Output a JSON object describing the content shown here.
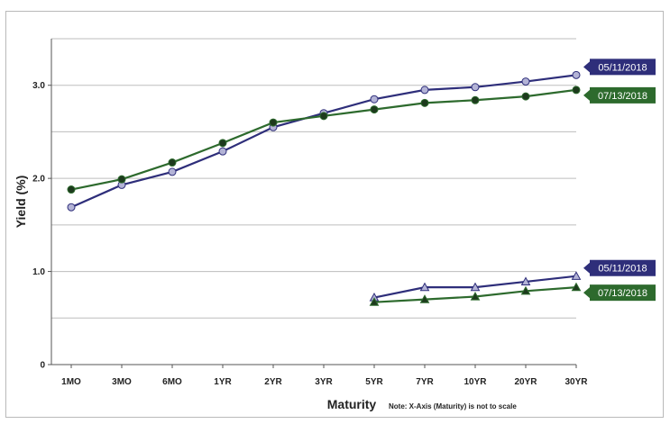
{
  "chart_data": {
    "type": "line",
    "xlabel": "Maturity",
    "note": "Note: X-Axis (Maturity) is not to scale",
    "ylabel": "Yield (%)",
    "ylim": [
      0,
      3.5
    ],
    "yticks": [
      {
        "value": 0,
        "label": "0"
      },
      {
        "value": 1,
        "label": "1.0"
      },
      {
        "value": 2,
        "label": "2.0"
      },
      {
        "value": 3,
        "label": "3.0"
      }
    ],
    "categories": [
      "1MO",
      "3MO",
      "6MO",
      "1YR",
      "2YR",
      "3YR",
      "5YR",
      "7YR",
      "10YR",
      "20YR",
      "30YR"
    ],
    "grid": true,
    "series": [
      {
        "name": "05/11/2018",
        "marker": "circle",
        "line_color": "#2e2e7a",
        "marker_fill": "#b3b3d6",
        "label_bg": "#2e2e7a",
        "values": [
          1.69,
          1.93,
          2.07,
          2.29,
          2.55,
          2.7,
          2.85,
          2.95,
          2.98,
          3.04,
          3.11
        ]
      },
      {
        "name": "07/13/2018",
        "marker": "circle",
        "line_color": "#2d6a2d",
        "marker_fill": "#1d3a1d",
        "label_bg": "#2d6a2d",
        "values": [
          1.88,
          1.99,
          2.17,
          2.38,
          2.6,
          2.67,
          2.74,
          2.81,
          2.84,
          2.88,
          2.95
        ]
      },
      {
        "name": "05/11/2018",
        "marker": "triangle",
        "line_color": "#2e2e7a",
        "marker_fill": "#b3b3d6",
        "label_bg": "#2e2e7a",
        "values": [
          null,
          null,
          null,
          null,
          null,
          null,
          0.72,
          0.83,
          0.83,
          0.89,
          0.95
        ]
      },
      {
        "name": "07/13/2018",
        "marker": "triangle",
        "line_color": "#2d6a2d",
        "marker_fill": "#1d3a1d",
        "label_bg": "#2d6a2d",
        "values": [
          null,
          null,
          null,
          null,
          null,
          null,
          0.67,
          0.7,
          0.73,
          0.79,
          0.83
        ]
      }
    ]
  }
}
